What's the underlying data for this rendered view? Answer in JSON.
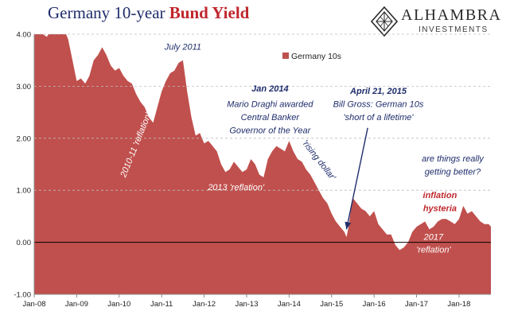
{
  "header": {
    "title_part1": "Germany 10-year",
    "title_part2": "Bund Yield"
  },
  "brand": {
    "name": "ALHAMBRA",
    "sub": "INVESTMENTS"
  },
  "colors": {
    "area": "#c0504d",
    "title_dark": "#1f2d6b",
    "title_red": "#c0272d",
    "annotation_white": "#ffffff",
    "annotation_navy": "#1f2d6b",
    "annotation_red": "#c0272d"
  },
  "chart_data": {
    "type": "area",
    "title": "Germany 10-year Bund Yield",
    "xlabel": "",
    "ylabel": "",
    "ylim": [
      -1.0,
      4.0
    ],
    "xlim": [
      2008.0,
      2018.75
    ],
    "y_ticks": [
      "4.00",
      "3.00",
      "2.00",
      "1.00",
      "0.00",
      "-1.00"
    ],
    "y_tick_values": [
      4,
      3,
      2,
      1,
      0,
      -1
    ],
    "x_ticks": [
      "Jan-08",
      "Jan-09",
      "Jan-10",
      "Jan-11",
      "Jan-12",
      "Jan-13",
      "Jan-14",
      "Jan-15",
      "Jan-16",
      "Jan-17",
      "Jan-18"
    ],
    "x_tick_values": [
      2008,
      2009,
      2010,
      2011,
      2012,
      2013,
      2014,
      2015,
      2016,
      2017,
      2018
    ],
    "grid": "horizontal dashed",
    "legend": {
      "position": "top-center",
      "entries": [
        "Germany 10s"
      ]
    },
    "series": [
      {
        "name": "Germany 10s",
        "x": [
          2008.0,
          2008.1,
          2008.2,
          2008.3,
          2008.4,
          2008.5,
          2008.6,
          2008.7,
          2008.8,
          2008.9,
          2009.0,
          2009.1,
          2009.2,
          2009.3,
          2009.4,
          2009.5,
          2009.6,
          2009.7,
          2009.8,
          2009.9,
          2010.0,
          2010.1,
          2010.2,
          2010.3,
          2010.4,
          2010.5,
          2010.6,
          2010.7,
          2010.8,
          2010.9,
          2011.0,
          2011.1,
          2011.2,
          2011.3,
          2011.4,
          2011.5,
          2011.55,
          2011.6,
          2011.7,
          2011.8,
          2011.9,
          2012.0,
          2012.1,
          2012.2,
          2012.3,
          2012.4,
          2012.5,
          2012.6,
          2012.7,
          2012.8,
          2012.9,
          2013.0,
          2013.1,
          2013.2,
          2013.3,
          2013.4,
          2013.5,
          2013.6,
          2013.7,
          2013.8,
          2013.9,
          2014.0,
          2014.1,
          2014.2,
          2014.3,
          2014.4,
          2014.5,
          2014.6,
          2014.7,
          2014.8,
          2014.9,
          2015.0,
          2015.1,
          2015.2,
          2015.3,
          2015.35,
          2015.4,
          2015.45,
          2015.5,
          2015.6,
          2015.7,
          2015.8,
          2015.9,
          2016.0,
          2016.1,
          2016.2,
          2016.3,
          2016.4,
          2016.5,
          2016.6,
          2016.7,
          2016.8,
          2016.9,
          2017.0,
          2017.1,
          2017.2,
          2017.3,
          2017.4,
          2017.5,
          2017.6,
          2017.7,
          2017.8,
          2017.9,
          2018.0,
          2018.1,
          2018.2,
          2018.3,
          2018.4,
          2018.5,
          2018.6,
          2018.7,
          2018.75
        ],
        "values": [
          4.0,
          4.0,
          4.0,
          3.95,
          4.1,
          4.4,
          4.35,
          4.1,
          3.9,
          3.5,
          3.1,
          3.15,
          3.05,
          3.2,
          3.5,
          3.6,
          3.75,
          3.6,
          3.4,
          3.3,
          3.35,
          3.2,
          3.1,
          3.05,
          2.85,
          2.7,
          2.6,
          2.4,
          2.3,
          2.6,
          2.9,
          3.1,
          3.25,
          3.3,
          3.45,
          3.5,
          3.2,
          2.9,
          2.4,
          2.05,
          2.1,
          1.9,
          1.95,
          1.85,
          1.75,
          1.5,
          1.35,
          1.4,
          1.55,
          1.45,
          1.35,
          1.4,
          1.6,
          1.5,
          1.3,
          1.25,
          1.6,
          1.75,
          1.85,
          1.8,
          1.75,
          1.95,
          1.75,
          1.6,
          1.55,
          1.4,
          1.3,
          1.15,
          1.0,
          0.85,
          0.75,
          0.55,
          0.4,
          0.3,
          0.2,
          0.1,
          0.3,
          0.6,
          0.85,
          0.75,
          0.65,
          0.6,
          0.5,
          0.6,
          0.35,
          0.25,
          0.15,
          0.15,
          -0.05,
          -0.15,
          -0.1,
          0.0,
          0.2,
          0.3,
          0.35,
          0.4,
          0.25,
          0.3,
          0.4,
          0.45,
          0.45,
          0.4,
          0.35,
          0.45,
          0.7,
          0.55,
          0.6,
          0.5,
          0.4,
          0.35,
          0.35,
          0.3
        ]
      }
    ],
    "annotations": [
      {
        "text": "July 2011",
        "x": 2011.5,
        "y": 3.7,
        "color": "navy",
        "italic": true,
        "rotate": 0
      },
      {
        "text": "2010-11 'reflation'",
        "x": 2010.45,
        "y": 1.85,
        "color": "white",
        "italic": true,
        "rotate": -68
      },
      {
        "text": "2013 'reflation'",
        "x": 2012.75,
        "y": 1.0,
        "color": "white",
        "italic": true,
        "rotate": 0
      },
      {
        "text": "Jan 2014",
        "x": 2013.55,
        "y": 2.9,
        "color": "navy",
        "italic": true,
        "bold": true,
        "rotate": 0
      },
      {
        "text": "Mario Draghi awarded",
        "x": 2013.55,
        "y": 2.6,
        "color": "navy",
        "italic": true,
        "rotate": 0
      },
      {
        "text": "Central Banker",
        "x": 2013.55,
        "y": 2.35,
        "color": "navy",
        "italic": true,
        "rotate": 0
      },
      {
        "text": "Governor of the Year",
        "x": 2013.55,
        "y": 2.1,
        "color": "navy",
        "italic": true,
        "rotate": 0
      },
      {
        "text": "'rising dollar'",
        "x": 2014.65,
        "y": 1.55,
        "color": "navy",
        "italic": true,
        "rotate": 52
      },
      {
        "text": "April 21, 2015",
        "x": 2016.1,
        "y": 2.85,
        "color": "navy",
        "italic": true,
        "bold": true,
        "rotate": 0
      },
      {
        "text": "Bill Gross: German 10s",
        "x": 2016.1,
        "y": 2.6,
        "color": "navy",
        "italic": true,
        "rotate": 0
      },
      {
        "text": "'short of a lifetime'",
        "x": 2016.1,
        "y": 2.35,
        "color": "navy",
        "italic": true,
        "rotate": 0
      },
      {
        "text": "are things really",
        "x": 2017.85,
        "y": 1.55,
        "color": "navy",
        "italic": true,
        "rotate": 0
      },
      {
        "text": "getting better?",
        "x": 2017.85,
        "y": 1.3,
        "color": "navy",
        "italic": true,
        "rotate": 0
      },
      {
        "text": "inflation",
        "x": 2017.55,
        "y": 0.85,
        "color": "red",
        "italic": true,
        "bold": true,
        "rotate": 0
      },
      {
        "text": "hysteria",
        "x": 2017.55,
        "y": 0.6,
        "color": "red",
        "italic": true,
        "bold": true,
        "rotate": 0
      },
      {
        "text": "2017",
        "x": 2017.4,
        "y": 0.05,
        "color": "white",
        "italic": true,
        "rotate": 0
      },
      {
        "text": "'reflation'",
        "x": 2017.4,
        "y": -0.2,
        "color": "white",
        "italic": true,
        "rotate": 0
      }
    ],
    "arrow": {
      "from": [
        2015.85,
        2.2
      ],
      "to": [
        2015.35,
        0.25
      ]
    }
  }
}
